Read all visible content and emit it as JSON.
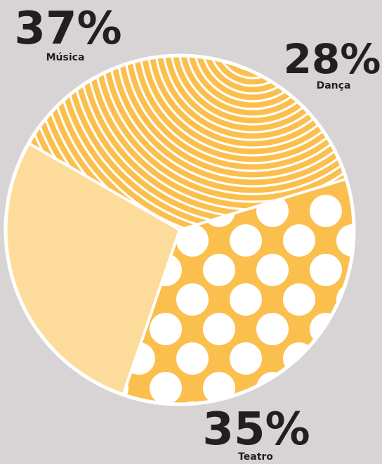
{
  "chart_data": {
    "type": "pie",
    "slices": [
      {
        "label": "Música",
        "value": 37,
        "display": "37%",
        "color": "#fbbf4e",
        "pattern": "stripes"
      },
      {
        "label": "Dança",
        "value": 28,
        "display": "28%",
        "color": "#fddc9b",
        "pattern": "squiggles"
      },
      {
        "label": "Teatro",
        "value": 35,
        "display": "35%",
        "color": "#fbbf4e",
        "pattern": "dots"
      }
    ],
    "outline_color": "#ffffff",
    "text_color": "#231f20",
    "background": "#d8d4d5"
  }
}
